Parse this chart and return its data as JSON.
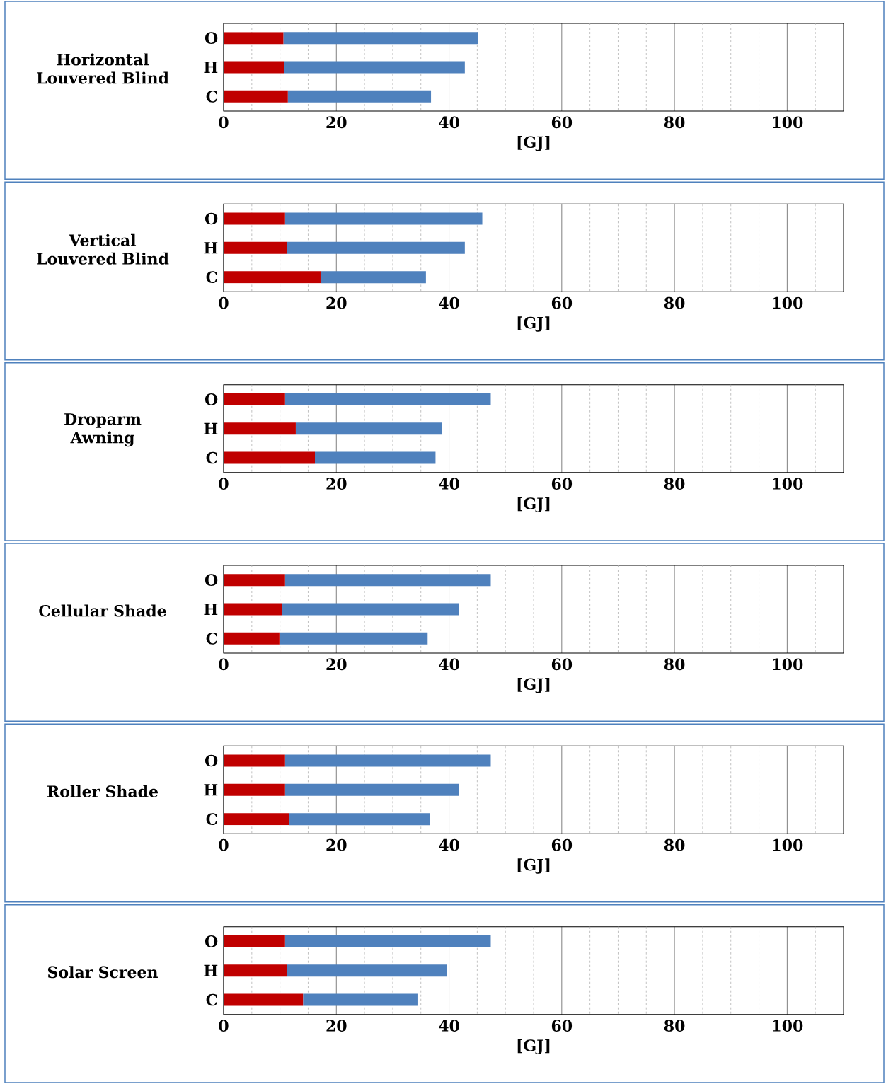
{
  "chart_data": [
    {
      "type": "bar",
      "orientation": "horizontal",
      "stacked": true,
      "title": "Horizontal Louvered Blind",
      "xlabel": "[GJ]",
      "categories": [
        "O",
        "H",
        "C"
      ],
      "grid": "x",
      "series": [
        {
          "color": "#c00000",
          "values": [
            10.6,
            10.7,
            11.4
          ]
        },
        {
          "color": "#4f81bd",
          "values": [
            34.5,
            32.1,
            25.4
          ]
        }
      ],
      "xlim": [
        0,
        110
      ],
      "xticks": [
        0,
        {
          "value": 5,
          "label": null
        },
        {
          "value": 10,
          "label": null
        },
        {
          "value": 15,
          "label": null
        },
        20,
        {
          "value": 25,
          "label": null
        },
        {
          "value": 30,
          "label": null
        },
        {
          "value": 35,
          "label": null
        },
        40,
        {
          "value": 45,
          "label": null
        },
        {
          "value": 50,
          "label": null
        },
        {
          "value": 55,
          "label": null
        },
        60,
        {
          "value": 65,
          "label": null
        },
        {
          "value": 70,
          "label": null
        },
        {
          "value": 75,
          "label": null
        },
        80,
        {
          "value": 85,
          "label": null
        },
        {
          "value": 90,
          "label": null
        },
        {
          "value": 95,
          "label": null
        },
        100,
        {
          "value": 105,
          "label": null
        }
      ]
    },
    {
      "type": "bar",
      "orientation": "horizontal",
      "stacked": true,
      "title": "Vertical Louvered Blind",
      "xlabel": "[GJ]",
      "categories": [
        "O",
        "H",
        "C"
      ],
      "grid": "x",
      "series": [
        {
          "color": "#c00000",
          "values": [
            10.9,
            11.3,
            17.2
          ]
        },
        {
          "color": "#4f81bd",
          "values": [
            35.0,
            31.5,
            18.7
          ]
        }
      ],
      "xlim": [
        0,
        110
      ],
      "xticks": [
        0,
        {
          "value": 5,
          "label": null
        },
        {
          "value": 10,
          "label": null
        },
        {
          "value": 15,
          "label": null
        },
        20,
        {
          "value": 25,
          "label": null
        },
        {
          "value": 30,
          "label": null
        },
        {
          "value": 35,
          "label": null
        },
        40,
        {
          "value": 45,
          "label": null
        },
        {
          "value": 50,
          "label": null
        },
        {
          "value": 55,
          "label": null
        },
        60,
        {
          "value": 65,
          "label": null
        },
        {
          "value": 70,
          "label": null
        },
        {
          "value": 75,
          "label": null
        },
        80,
        {
          "value": 85,
          "label": null
        },
        {
          "value": 90,
          "label": null
        },
        {
          "value": 95,
          "label": null
        },
        100,
        {
          "value": 105,
          "label": null
        }
      ]
    },
    {
      "type": "bar",
      "orientation": "horizontal",
      "stacked": true,
      "title": "Droparm Awning",
      "xlabel": "[GJ]",
      "categories": [
        "O",
        "H",
        "C"
      ],
      "grid": "x",
      "series": [
        {
          "color": "#c00000",
          "values": [
            10.9,
            12.8,
            16.2
          ]
        },
        {
          "color": "#4f81bd",
          "values": [
            36.5,
            25.9,
            21.4
          ]
        }
      ],
      "xlim": [
        0,
        110
      ],
      "xticks": [
        0,
        {
          "value": 5,
          "label": null
        },
        {
          "value": 10,
          "label": null
        },
        {
          "value": 15,
          "label": null
        },
        20,
        {
          "value": 25,
          "label": null
        },
        {
          "value": 30,
          "label": null
        },
        {
          "value": 35,
          "label": null
        },
        40,
        {
          "value": 45,
          "label": null
        },
        {
          "value": 50,
          "label": null
        },
        {
          "value": 55,
          "label": null
        },
        60,
        {
          "value": 65,
          "label": null
        },
        {
          "value": 70,
          "label": null
        },
        {
          "value": 75,
          "label": null
        },
        80,
        {
          "value": 85,
          "label": null
        },
        {
          "value": 90,
          "label": null
        },
        {
          "value": 95,
          "label": null
        },
        100,
        {
          "value": 105,
          "label": null
        }
      ]
    },
    {
      "type": "bar",
      "orientation": "horizontal",
      "stacked": true,
      "title": "Cellular Shade",
      "xlabel": "[GJ]",
      "categories": [
        "O",
        "H",
        "C"
      ],
      "grid": "x",
      "series": [
        {
          "color": "#c00000",
          "values": [
            10.9,
            10.3,
            9.9
          ]
        },
        {
          "color": "#4f81bd",
          "values": [
            36.5,
            31.5,
            26.3
          ]
        }
      ],
      "xlim": [
        0,
        110
      ],
      "xticks": [
        0,
        {
          "value": 5,
          "label": null
        },
        {
          "value": 10,
          "label": null
        },
        {
          "value": 15,
          "label": null
        },
        20,
        {
          "value": 25,
          "label": null
        },
        {
          "value": 30,
          "label": null
        },
        {
          "value": 35,
          "label": null
        },
        40,
        {
          "value": 45,
          "label": null
        },
        {
          "value": 50,
          "label": null
        },
        {
          "value": 55,
          "label": null
        },
        60,
        {
          "value": 65,
          "label": null
        },
        {
          "value": 70,
          "label": null
        },
        {
          "value": 75,
          "label": null
        },
        80,
        {
          "value": 85,
          "label": null
        },
        {
          "value": 90,
          "label": null
        },
        {
          "value": 95,
          "label": null
        },
        100,
        {
          "value": 105,
          "label": null
        }
      ]
    },
    {
      "type": "bar",
      "orientation": "horizontal",
      "stacked": true,
      "title": "Roller Shade",
      "xlabel": "[GJ]",
      "categories": [
        "O",
        "H",
        "C"
      ],
      "grid": "x",
      "series": [
        {
          "color": "#c00000",
          "values": [
            10.9,
            10.9,
            11.6
          ]
        },
        {
          "color": "#4f81bd",
          "values": [
            36.5,
            30.8,
            25.0
          ]
        }
      ],
      "xlim": [
        0,
        110
      ],
      "xticks": [
        0,
        {
          "value": 5,
          "label": null
        },
        {
          "value": 10,
          "label": null
        },
        {
          "value": 15,
          "label": null
        },
        20,
        {
          "value": 25,
          "label": null
        },
        {
          "value": 30,
          "label": null
        },
        {
          "value": 35,
          "label": null
        },
        40,
        {
          "value": 45,
          "label": null
        },
        {
          "value": 50,
          "label": null
        },
        {
          "value": 55,
          "label": null
        },
        60,
        {
          "value": 65,
          "label": null
        },
        {
          "value": 70,
          "label": null
        },
        {
          "value": 75,
          "label": null
        },
        80,
        {
          "value": 85,
          "label": null
        },
        {
          "value": 90,
          "label": null
        },
        {
          "value": 95,
          "label": null
        },
        100,
        {
          "value": 105,
          "label": null
        }
      ]
    },
    {
      "type": "bar",
      "orientation": "horizontal",
      "stacked": true,
      "title": "Solar Screen",
      "xlabel": "[GJ]",
      "categories": [
        "O",
        "H",
        "C"
      ],
      "grid": "x",
      "series": [
        {
          "color": "#c00000",
          "values": [
            10.9,
            11.3,
            14.1
          ]
        },
        {
          "color": "#4f81bd",
          "values": [
            36.5,
            28.3,
            20.3
          ]
        }
      ],
      "xlim": [
        0,
        110
      ],
      "xticks": [
        0,
        {
          "value": 5,
          "label": null
        },
        {
          "value": 10,
          "label": null
        },
        {
          "value": 15,
          "label": null
        },
        20,
        {
          "value": 25,
          "label": null
        },
        {
          "value": 30,
          "label": null
        },
        {
          "value": 35,
          "label": null
        },
        40,
        {
          "value": 45,
          "label": null
        },
        {
          "value": 50,
          "label": null
        },
        {
          "value": 55,
          "label": null
        },
        60,
        {
          "value": 65,
          "label": null
        },
        {
          "value": 70,
          "label": null
        },
        {
          "value": 75,
          "label": null
        },
        80,
        {
          "value": 85,
          "label": null
        },
        {
          "value": 90,
          "label": null
        },
        {
          "value": 95,
          "label": null
        },
        100,
        {
          "value": 105,
          "label": null
        }
      ]
    }
  ]
}
